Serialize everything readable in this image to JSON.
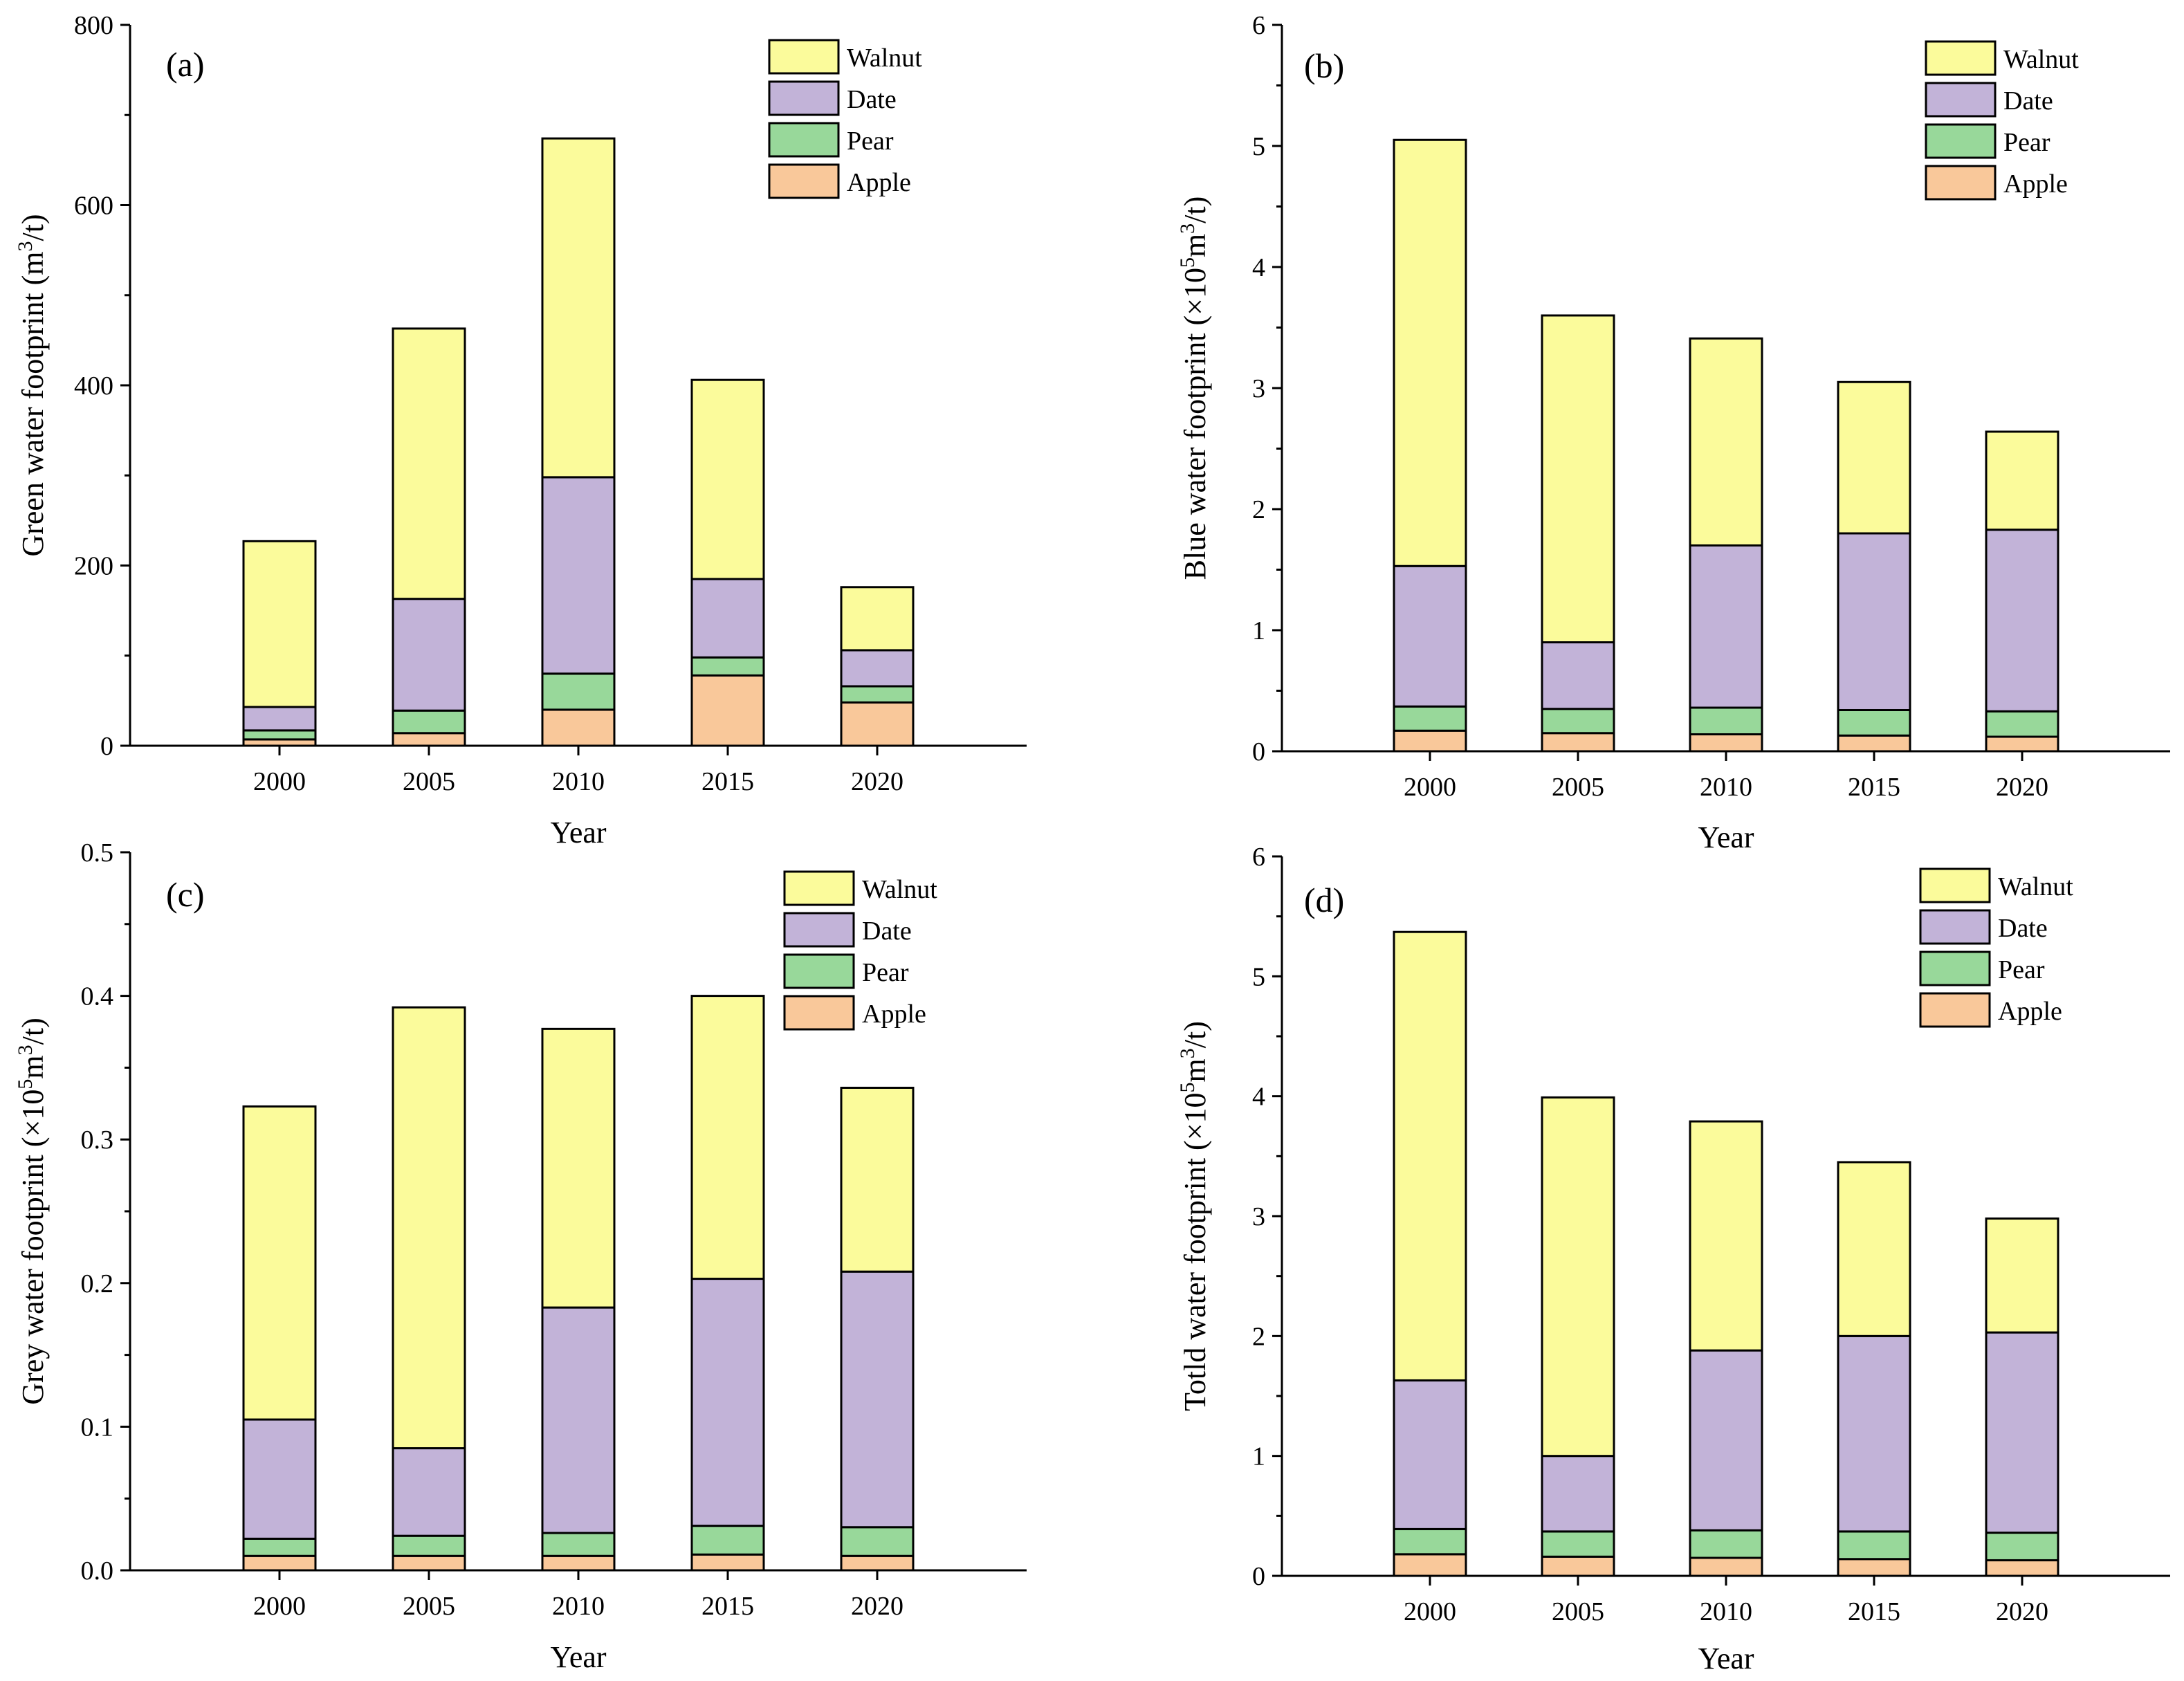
{
  "colors": {
    "Walnut": "#fbfb9b",
    "Date": "#c2b3d8",
    "Pear": "#98d89a",
    "Apple": "#f9c89a",
    "outline": "#000000"
  },
  "chart_data": [
    {
      "type": "bar",
      "stacked": true,
      "label": "(a)",
      "title": "",
      "xlabel": "Year",
      "ylabel": {
        "main": "Green water footprint (m",
        "sup": "3",
        "tail": "/t)"
      },
      "ylim": [
        0,
        800
      ],
      "yticks": [
        "0",
        "200",
        "400",
        "600",
        "800"
      ],
      "categories": [
        "2000",
        "2005",
        "2010",
        "2015",
        "2020"
      ],
      "legend_position": "top-right",
      "legend": [
        "Walnut",
        "Date",
        "Pear",
        "Apple"
      ],
      "series": [
        {
          "name": "Apple",
          "values": [
            7,
            14,
            40,
            78,
            48
          ]
        },
        {
          "name": "Pear",
          "values": [
            10,
            25,
            40,
            20,
            18
          ]
        },
        {
          "name": "Date",
          "values": [
            26,
            124,
            218,
            87,
            40
          ]
        },
        {
          "name": "Walnut",
          "values": [
            184,
            300,
            376,
            221,
            70
          ]
        }
      ]
    },
    {
      "type": "bar",
      "stacked": true,
      "label": "(b)",
      "title": "",
      "xlabel": "Year",
      "ylabel": {
        "main": "Blue water footprint (×10",
        "sup": "5",
        "tail": "m",
        "sup2": "3",
        "tail2": "/t)"
      },
      "ylim": [
        0,
        6
      ],
      "yticks": [
        "0",
        "1",
        "2",
        "3",
        "4",
        "5",
        "6"
      ],
      "categories": [
        "2000",
        "2005",
        "2010",
        "2015",
        "2020"
      ],
      "legend_position": "top-right",
      "legend": [
        "Walnut",
        "Date",
        "Pear",
        "Apple"
      ],
      "series": [
        {
          "name": "Apple",
          "values": [
            0.17,
            0.15,
            0.14,
            0.13,
            0.12
          ]
        },
        {
          "name": "Pear",
          "values": [
            0.2,
            0.2,
            0.22,
            0.21,
            0.21
          ]
        },
        {
          "name": "Date",
          "values": [
            1.16,
            0.55,
            1.34,
            1.46,
            1.5
          ]
        },
        {
          "name": "Walnut",
          "values": [
            3.52,
            2.7,
            1.71,
            1.25,
            0.81
          ]
        }
      ]
    },
    {
      "type": "bar",
      "stacked": true,
      "label": "(c)",
      "title": "",
      "xlabel": "Year",
      "ylabel": {
        "main": "Grey water footprint (×10",
        "sup": "5",
        "tail": "m",
        "sup2": "3",
        "tail2": "/t)"
      },
      "ylim": [
        0,
        0.5
      ],
      "yticks": [
        "0.0",
        "0.1",
        "0.2",
        "0.3",
        "0.4",
        "0.5"
      ],
      "categories": [
        "2000",
        "2005",
        "2010",
        "2015",
        "2020"
      ],
      "legend_position": "top-right",
      "legend": [
        "Walnut",
        "Date",
        "Pear",
        "Apple"
      ],
      "series": [
        {
          "name": "Apple",
          "values": [
            0.01,
            0.01,
            0.01,
            0.011,
            0.01
          ]
        },
        {
          "name": "Pear",
          "values": [
            0.012,
            0.014,
            0.016,
            0.02,
            0.02
          ]
        },
        {
          "name": "Date",
          "values": [
            0.083,
            0.061,
            0.157,
            0.172,
            0.178
          ]
        },
        {
          "name": "Walnut",
          "values": [
            0.218,
            0.307,
            0.194,
            0.197,
            0.128
          ]
        }
      ]
    },
    {
      "type": "bar",
      "stacked": true,
      "label": "(d)",
      "title": "",
      "xlabel": "Year",
      "ylabel": {
        "main": "Totld water footprint (×10",
        "sup": "5",
        "tail": "m",
        "sup2": "3",
        "tail2": "/t)"
      },
      "ylim": [
        0,
        6
      ],
      "yticks": [
        "0",
        "1",
        "2",
        "3",
        "4",
        "5",
        "6"
      ],
      "categories": [
        "2000",
        "2005",
        "2010",
        "2015",
        "2020"
      ],
      "legend_position": "top-right",
      "legend": [
        "Walnut",
        "Date",
        "Pear",
        "Apple"
      ],
      "series": [
        {
          "name": "Apple",
          "values": [
            0.18,
            0.16,
            0.15,
            0.14,
            0.13
          ]
        },
        {
          "name": "Pear",
          "values": [
            0.21,
            0.21,
            0.23,
            0.23,
            0.23
          ]
        },
        {
          "name": "Date",
          "values": [
            1.24,
            0.63,
            1.5,
            1.63,
            1.67
          ]
        },
        {
          "name": "Walnut",
          "values": [
            3.74,
            2.99,
            1.91,
            1.45,
            0.95
          ]
        }
      ]
    }
  ]
}
